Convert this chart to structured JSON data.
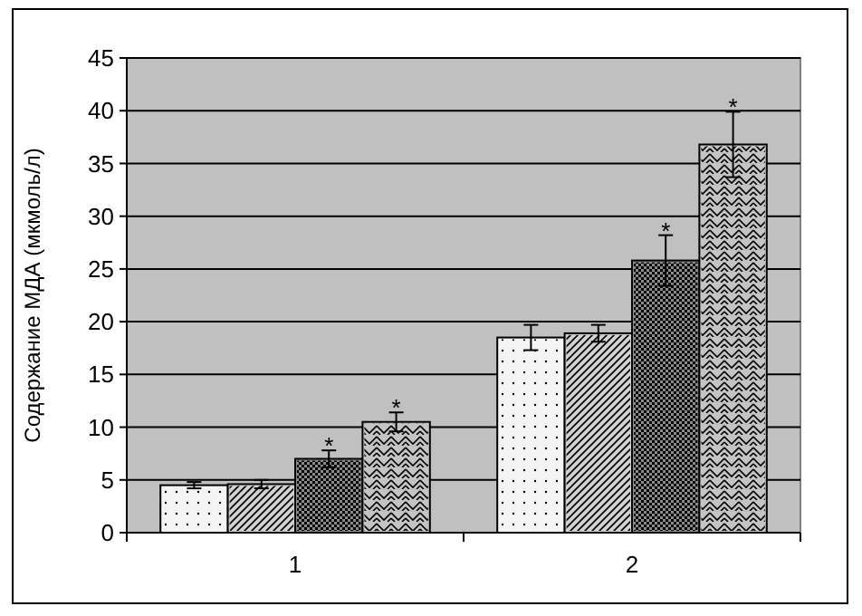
{
  "chart_data": {
    "type": "bar",
    "ylabel": "Содержание МДА (мкмоль/л)",
    "categories": [
      "1",
      "2"
    ],
    "series": [
      {
        "color": "#f4f4f4",
        "values": [
          4.5,
          18.5
        ],
        "errors": [
          0.3,
          1.2
        ]
      },
      {
        "color": "#d0d0d0",
        "values": [
          4.6,
          18.9
        ],
        "errors": [
          0.4,
          0.8
        ]
      },
      {
        "color": "#8a8a8a",
        "values": [
          7.0,
          25.8
        ],
        "errors": [
          0.8,
          2.4
        ],
        "value_labels": [
          "*",
          "*"
        ]
      },
      {
        "color": "#c4c4c4",
        "values": [
          10.5,
          36.8
        ],
        "errors": [
          0.9,
          3.1
        ],
        "value_labels": [
          "*",
          "*"
        ]
      }
    ],
    "ylim": [
      0,
      45
    ],
    "yticks": [
      0,
      5,
      10,
      15,
      20,
      25,
      30,
      35,
      40,
      45
    ],
    "grid": "y"
  }
}
